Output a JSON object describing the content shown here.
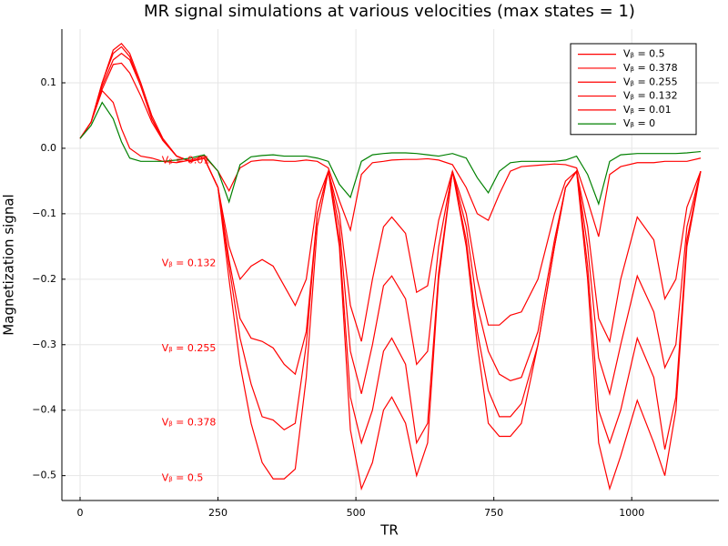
{
  "chart_data": {
    "type": "line",
    "title": "MR signal simulations at various velocities (max states = 1)",
    "x_label": "TR",
    "y_label": "Magnetization signal",
    "xlim": [
      -33,
      1158
    ],
    "ylim": [
      -0.538,
      0.182
    ],
    "xticks": [
      0,
      250,
      500,
      750,
      1000
    ],
    "yticks": [
      {
        "value": -0.5,
        "label": "−0.5"
      },
      {
        "value": -0.4,
        "label": "−0.4"
      },
      {
        "value": -0.3,
        "label": "−0.3"
      },
      {
        "value": -0.2,
        "label": "−0.2"
      },
      {
        "value": -0.1,
        "label": "−0.1"
      },
      {
        "value": 0,
        "label": "0.0"
      },
      0.1
    ],
    "grid": true,
    "legend": "top-right",
    "x": [
      0,
      20,
      40,
      60,
      75,
      90,
      110,
      130,
      150,
      175,
      200,
      225,
      250,
      270,
      290,
      310,
      330,
      350,
      370,
      390,
      410,
      430,
      450,
      470,
      490,
      510,
      530,
      550,
      565,
      590,
      610,
      630,
      650,
      675,
      700,
      720,
      740,
      760,
      780,
      800,
      830,
      860,
      880,
      900,
      920,
      940,
      960,
      980,
      1010,
      1040,
      1060,
      1080,
      1100,
      1125
    ],
    "series": [
      {
        "name": "Vᵦ = 0.5",
        "color": "#ff0000",
        "values": [
          0.015,
          0.04,
          0.1,
          0.15,
          0.16,
          0.145,
          0.1,
          0.05,
          0.015,
          -0.012,
          -0.02,
          -0.015,
          -0.06,
          -0.2,
          -0.33,
          -0.42,
          -0.48,
          -0.505,
          -0.505,
          -0.49,
          -0.35,
          -0.12,
          -0.035,
          -0.15,
          -0.43,
          -0.52,
          -0.48,
          -0.4,
          -0.38,
          -0.42,
          -0.5,
          -0.45,
          -0.2,
          -0.035,
          -0.15,
          -0.3,
          -0.42,
          -0.44,
          -0.44,
          -0.42,
          -0.3,
          -0.15,
          -0.06,
          -0.035,
          -0.2,
          -0.45,
          -0.52,
          -0.47,
          -0.385,
          -0.45,
          -0.5,
          -0.4,
          -0.15,
          -0.035
        ]
      },
      {
        "name": "Vᵦ = 0.378",
        "color": "#ff0000",
        "values": [
          0.015,
          0.04,
          0.1,
          0.145,
          0.155,
          0.14,
          0.095,
          0.045,
          0.012,
          -0.012,
          -0.02,
          -0.015,
          -0.06,
          -0.18,
          -0.29,
          -0.36,
          -0.41,
          -0.415,
          -0.43,
          -0.42,
          -0.3,
          -0.1,
          -0.035,
          -0.14,
          -0.38,
          -0.45,
          -0.4,
          -0.31,
          -0.29,
          -0.33,
          -0.45,
          -0.42,
          -0.19,
          -0.035,
          -0.14,
          -0.28,
          -0.37,
          -0.41,
          -0.41,
          -0.39,
          -0.3,
          -0.15,
          -0.06,
          -0.035,
          -0.18,
          -0.4,
          -0.45,
          -0.4,
          -0.29,
          -0.35,
          -0.46,
          -0.38,
          -0.14,
          -0.035
        ]
      },
      {
        "name": "Vᵦ = 0.255",
        "color": "#ff0000",
        "values": [
          0.015,
          0.04,
          0.095,
          0.135,
          0.145,
          0.135,
          0.095,
          0.045,
          0.012,
          -0.012,
          -0.02,
          -0.015,
          -0.06,
          -0.17,
          -0.26,
          -0.29,
          -0.295,
          -0.305,
          -0.33,
          -0.345,
          -0.28,
          -0.1,
          -0.035,
          -0.12,
          -0.31,
          -0.375,
          -0.3,
          -0.21,
          -0.195,
          -0.23,
          -0.33,
          -0.31,
          -0.15,
          -0.035,
          -0.12,
          -0.24,
          -0.31,
          -0.345,
          -0.355,
          -0.35,
          -0.28,
          -0.14,
          -0.06,
          -0.035,
          -0.15,
          -0.32,
          -0.375,
          -0.3,
          -0.195,
          -0.25,
          -0.335,
          -0.3,
          -0.12,
          -0.035
        ]
      },
      {
        "name": "Vᵦ = 0.132",
        "color": "#ff0000",
        "values": [
          0.015,
          0.04,
          0.09,
          0.128,
          0.13,
          0.115,
          0.08,
          0.04,
          0.012,
          -0.012,
          -0.02,
          -0.015,
          -0.06,
          -0.15,
          -0.2,
          -0.18,
          -0.17,
          -0.18,
          -0.21,
          -0.24,
          -0.2,
          -0.08,
          -0.035,
          -0.1,
          -0.24,
          -0.295,
          -0.2,
          -0.12,
          -0.105,
          -0.13,
          -0.22,
          -0.21,
          -0.11,
          -0.035,
          -0.1,
          -0.2,
          -0.27,
          -0.27,
          -0.255,
          -0.25,
          -0.2,
          -0.1,
          -0.05,
          -0.035,
          -0.12,
          -0.26,
          -0.295,
          -0.2,
          -0.105,
          -0.14,
          -0.23,
          -0.2,
          -0.09,
          -0.035
        ]
      },
      {
        "name": "Vᵦ = 0.01",
        "color": "#ff0000",
        "values": [
          0.015,
          0.04,
          0.088,
          0.07,
          0.03,
          0.0,
          -0.012,
          -0.015,
          -0.02,
          -0.022,
          -0.018,
          -0.012,
          -0.035,
          -0.065,
          -0.03,
          -0.02,
          -0.018,
          -0.018,
          -0.02,
          -0.02,
          -0.018,
          -0.02,
          -0.03,
          -0.08,
          -0.125,
          -0.04,
          -0.022,
          -0.02,
          -0.018,
          -0.017,
          -0.017,
          -0.016,
          -0.018,
          -0.025,
          -0.06,
          -0.1,
          -0.11,
          -0.07,
          -0.035,
          -0.028,
          -0.026,
          -0.024,
          -0.025,
          -0.03,
          -0.08,
          -0.135,
          -0.04,
          -0.028,
          -0.022,
          -0.022,
          -0.02,
          -0.02,
          -0.02,
          -0.015
        ]
      },
      {
        "name": "Vᵦ = 0",
        "color": "#008000",
        "values": [
          0.015,
          0.035,
          0.07,
          0.045,
          0.01,
          -0.015,
          -0.02,
          -0.02,
          -0.02,
          -0.018,
          -0.015,
          -0.01,
          -0.035,
          -0.082,
          -0.025,
          -0.013,
          -0.011,
          -0.01,
          -0.012,
          -0.012,
          -0.012,
          -0.015,
          -0.02,
          -0.055,
          -0.075,
          -0.02,
          -0.01,
          -0.008,
          -0.007,
          -0.007,
          -0.008,
          -0.01,
          -0.012,
          -0.008,
          -0.015,
          -0.045,
          -0.068,
          -0.035,
          -0.022,
          -0.02,
          -0.02,
          -0.02,
          -0.018,
          -0.012,
          -0.04,
          -0.085,
          -0.02,
          -0.01,
          -0.008,
          -0.008,
          -0.008,
          -0.008,
          -0.007,
          -0.005
        ]
      }
    ],
    "annotations": [
      {
        "text": "Vᵦ = 0.5",
        "x": 148,
        "y": -0.504,
        "color": "#ff0000"
      },
      {
        "text": "Vᵦ = 0.378",
        "x": 148,
        "y": -0.419,
        "color": "#ff0000"
      },
      {
        "text": "Vᵦ = 0.255",
        "x": 148,
        "y": -0.306,
        "color": "#ff0000"
      },
      {
        "text": "Vᵦ = 0.132",
        "x": 148,
        "y": -0.176,
        "color": "#ff0000"
      },
      {
        "text": "Vᵦ = 0.01",
        "x": 148,
        "y": -0.019,
        "color": "#ff0000"
      }
    ]
  }
}
